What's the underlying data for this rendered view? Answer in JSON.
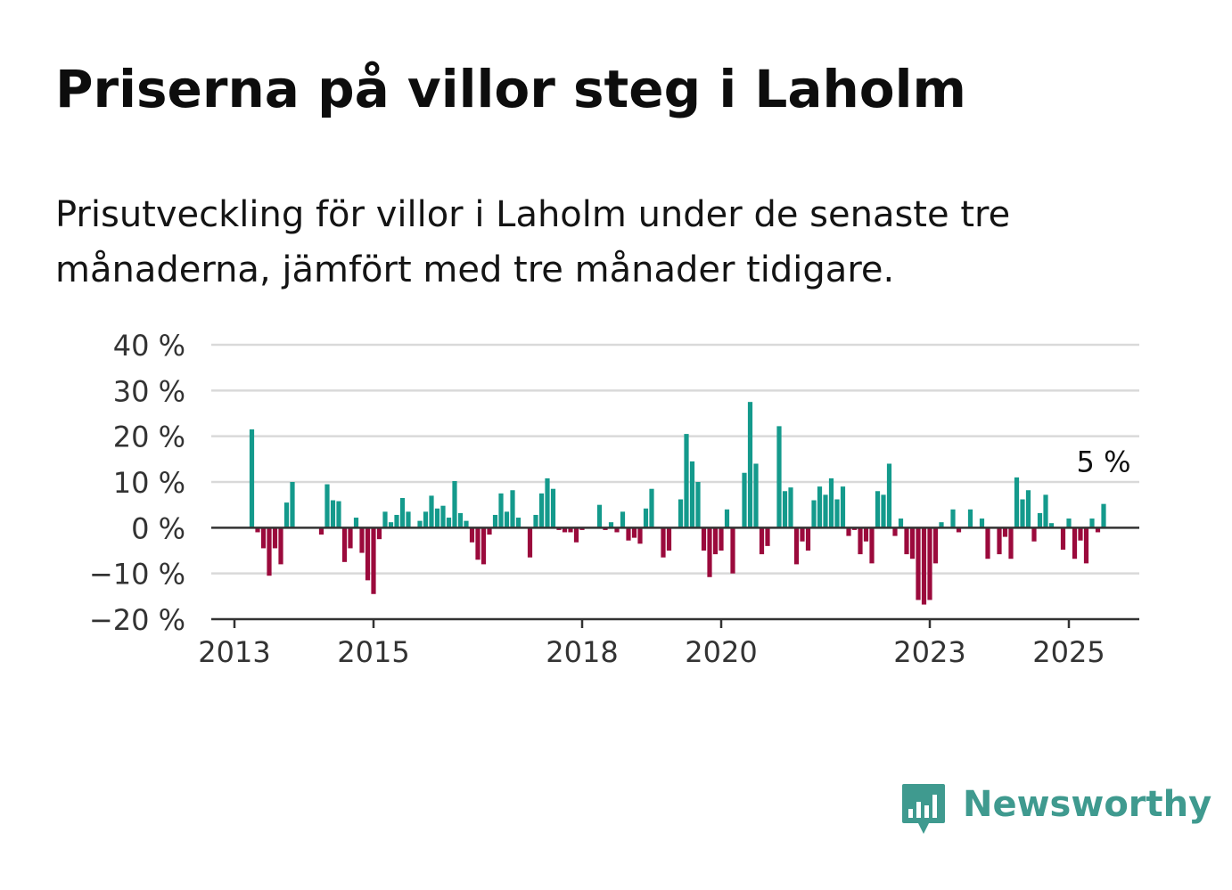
{
  "title": "Priserna på villor steg i Laholm",
  "subtitle": "Prisutveckling för villor i Laholm under de senaste tre månaderna, jämfört med tre månader tidigare.",
  "brand": {
    "name": "Newsworthy",
    "icon": "newsworthy-bar-chart-icon",
    "color": "#3f9a8f"
  },
  "colors": {
    "positive": "#149a8c",
    "negative": "#9b0a3c",
    "grid": "#d9d9d9",
    "axis": "#333333"
  },
  "chart_data": {
    "type": "bar",
    "ylim": [
      -20,
      40
    ],
    "yticks": [
      {
        "value": 40,
        "label": "40 %"
      },
      {
        "value": 30,
        "label": "30 %"
      },
      {
        "value": 20,
        "label": "20 %"
      },
      {
        "value": 10,
        "label": "10 %"
      },
      {
        "value": 0,
        "label": "0 %"
      },
      {
        "value": -10,
        "label": "−10 %"
      },
      {
        "value": -20,
        "label": "−20 %"
      }
    ],
    "xstart": "2013-01",
    "xend": "2026-06",
    "xticks": [
      {
        "date": "2013-01",
        "label": "2013"
      },
      {
        "date": "2015-01",
        "label": "2015"
      },
      {
        "date": "2018-01",
        "label": "2018"
      },
      {
        "date": "2020-01",
        "label": "2020"
      },
      {
        "date": "2023-01",
        "label": "2023"
      },
      {
        "date": "2025-01",
        "label": "2025"
      }
    ],
    "annotation": {
      "label": "5 %"
    },
    "start_month": "2013-04",
    "values": [
      21.5,
      -1,
      -4.5,
      -10.5,
      -4.5,
      -8,
      5.5,
      10,
      0,
      0,
      0,
      0,
      -1.5,
      9.5,
      6,
      5.8,
      -7.5,
      -4.5,
      2.2,
      -5.5,
      -11.5,
      -14.5,
      -2.5,
      3.5,
      1.2,
      2.8,
      6.5,
      3.5,
      0,
      1.5,
      3.5,
      7,
      4.2,
      4.8,
      2.2,
      10.2,
      3.2,
      1.5,
      -3.2,
      -7,
      -8,
      -1.5,
      2.8,
      7.5,
      3.5,
      8.2,
      2.2,
      0,
      -6.5,
      2.8,
      7.5,
      10.8,
      8.5,
      -0.5,
      -1,
      -1,
      -3.2,
      -0.5,
      0,
      0,
      5,
      -0.5,
      1.2,
      -1,
      3.5,
      -2.8,
      -2.2,
      -3.5,
      4.2,
      8.5,
      0,
      -6.5,
      -5,
      0,
      6.2,
      20.5,
      14.5,
      10,
      -5,
      -10.8,
      -5.8,
      -5,
      4,
      -10,
      0,
      12,
      27.5,
      14,
      -5.8,
      -4,
      0,
      22.2,
      8,
      8.8,
      -8,
      -3,
      -5,
      6,
      9,
      7.2,
      10.8,
      6.2,
      9,
      -1.8,
      -0.5,
      -5.8,
      -3,
      -7.8,
      8,
      7.2,
      14,
      -1.8,
      2,
      -5.8,
      -6.8,
      -15.8,
      -16.8,
      -15.8,
      -7.8,
      1.2,
      0,
      4,
      -1,
      0,
      4,
      0,
      2,
      -6.8,
      0,
      -5.8,
      -2,
      -6.8,
      11,
      6.2,
      8.2,
      -3,
      3.2,
      7.2,
      1,
      0,
      -4.8,
      2,
      -6.8,
      -2.8,
      -7.8,
      2,
      -1,
      5.2
    ]
  }
}
